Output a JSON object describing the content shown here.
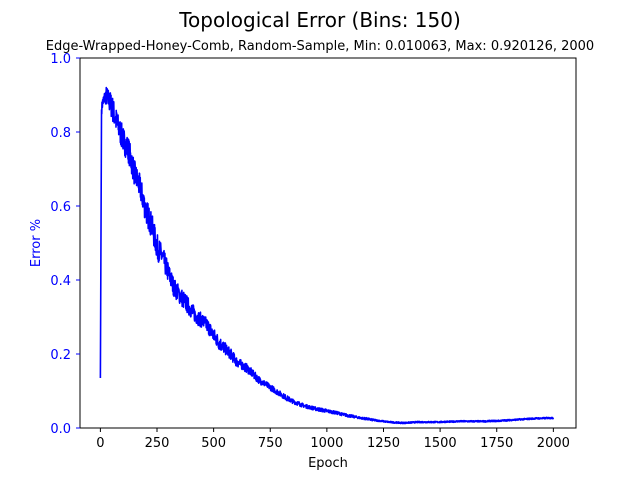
{
  "chart_data": {
    "type": "line",
    "title": "Topological Error (Bins: 150)",
    "subtitle": "Edge-Wrapped-Honey-Comb, Random-Sample, Min: 0.010063, Max: 0.920126, 2000",
    "xlabel": "Epoch",
    "ylabel": "Error %",
    "xlim": [
      -90,
      2100
    ],
    "ylim": [
      0,
      1.0
    ],
    "xticks": [
      "0",
      "250",
      "500",
      "750",
      "1000",
      "1250",
      "1500",
      "1750",
      "2000"
    ],
    "yticks": [
      "0.0",
      "0.2",
      "0.4",
      "0.6",
      "0.8",
      "1.0"
    ],
    "grid": false,
    "series": [
      {
        "color": "#0000ff",
        "axis_color": "#0000ff",
        "x": [
          0,
          5,
          10,
          25,
          50,
          75,
          100,
          125,
          150,
          175,
          200,
          225,
          250,
          275,
          300,
          325,
          350,
          375,
          400,
          425,
          450,
          475,
          500,
          525,
          550,
          575,
          600,
          625,
          650,
          675,
          700,
          725,
          750,
          775,
          800,
          825,
          850,
          875,
          900,
          925,
          950,
          975,
          1000,
          1025,
          1050,
          1075,
          1100,
          1125,
          1150,
          1175,
          1200,
          1225,
          1250,
          1275,
          1300,
          1325,
          1350,
          1375,
          1400,
          1425,
          1450,
          1475,
          1500,
          1525,
          1550,
          1575,
          1600,
          1625,
          1650,
          1675,
          1700,
          1725,
          1750,
          1775,
          1800,
          1825,
          1850,
          1875,
          1900,
          1925,
          1950,
          1975,
          2000
        ],
        "values": [
          0.135,
          0.86,
          0.88,
          0.9,
          0.87,
          0.82,
          0.78,
          0.75,
          0.69,
          0.65,
          0.59,
          0.55,
          0.49,
          0.46,
          0.42,
          0.38,
          0.36,
          0.34,
          0.32,
          0.3,
          0.29,
          0.275,
          0.25,
          0.23,
          0.215,
          0.2,
          0.18,
          0.17,
          0.16,
          0.145,
          0.13,
          0.12,
          0.11,
          0.1,
          0.09,
          0.08,
          0.072,
          0.066,
          0.06,
          0.056,
          0.052,
          0.049,
          0.046,
          0.043,
          0.04,
          0.036,
          0.033,
          0.03,
          0.027,
          0.025,
          0.022,
          0.02,
          0.018,
          0.016,
          0.015,
          0.014,
          0.014,
          0.015,
          0.016,
          0.016,
          0.016,
          0.016,
          0.016,
          0.017,
          0.017,
          0.018,
          0.018,
          0.018,
          0.018,
          0.018,
          0.018,
          0.019,
          0.019,
          0.02,
          0.021,
          0.022,
          0.023,
          0.024,
          0.025,
          0.026,
          0.026,
          0.027,
          0.027
        ],
        "noise": [
          0.0,
          0.015,
          0.015,
          0.025,
          0.035,
          0.035,
          0.035,
          0.035,
          0.035,
          0.035,
          0.035,
          0.035,
          0.035,
          0.03,
          0.028,
          0.025,
          0.025,
          0.025,
          0.022,
          0.02,
          0.02,
          0.02,
          0.02,
          0.02,
          0.016,
          0.015,
          0.014,
          0.012,
          0.012,
          0.011,
          0.01,
          0.009,
          0.008,
          0.008,
          0.007,
          0.007,
          0.006,
          0.006,
          0.005,
          0.005,
          0.005,
          0.005,
          0.005,
          0.004,
          0.004,
          0.004,
          0.004,
          0.003,
          0.003,
          0.003,
          0.003,
          0.002,
          0.002,
          0.002,
          0.002,
          0.002,
          0.002,
          0.002,
          0.002,
          0.002,
          0.002,
          0.002,
          0.002,
          0.002,
          0.002,
          0.002,
          0.002,
          0.002,
          0.002,
          0.002,
          0.002,
          0.002,
          0.002,
          0.002,
          0.002,
          0.002,
          0.002,
          0.002,
          0.002,
          0.002,
          0.002,
          0.002,
          0.002
        ]
      }
    ]
  }
}
